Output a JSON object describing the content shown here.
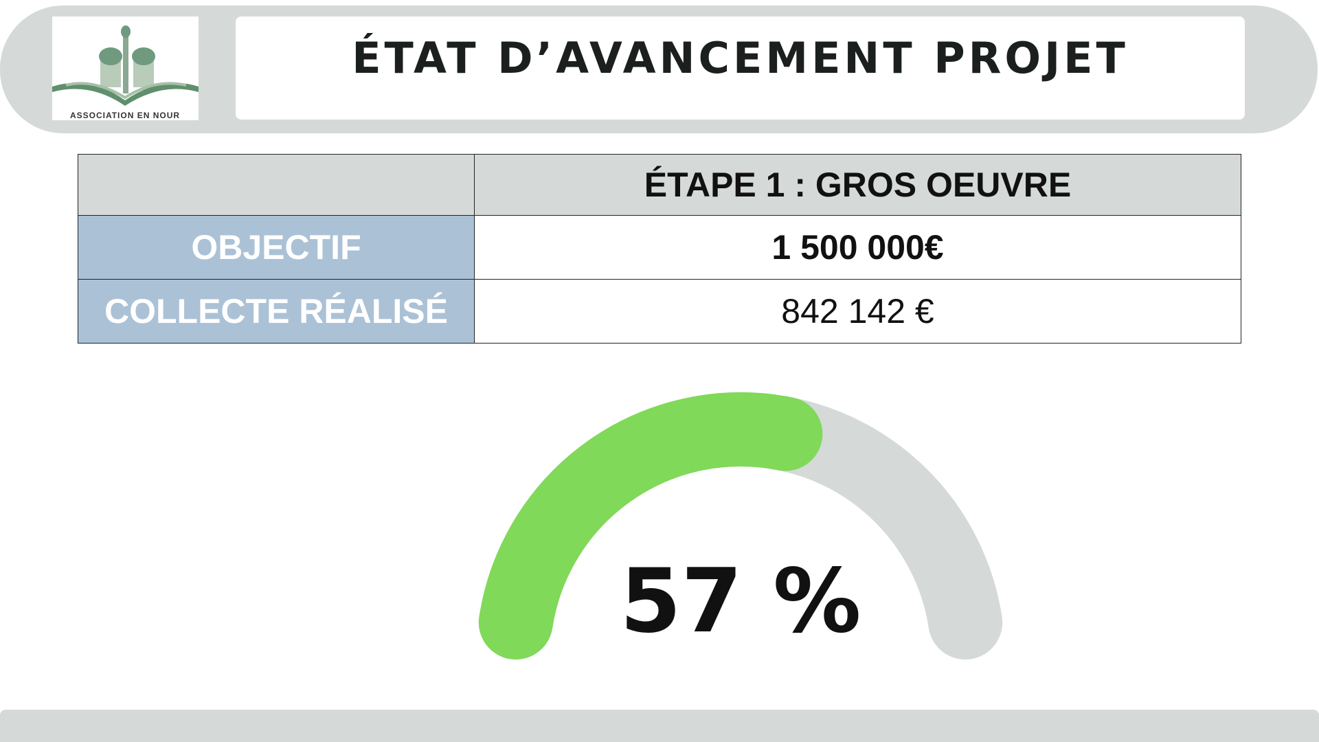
{
  "header": {
    "logo_text": "ASSOCIATION EN NOUR",
    "title": "ÉTAT D’AVANCEMENT PROJET"
  },
  "table": {
    "header": "ÉTAPE 1 : GROS OEUVRE",
    "rows": [
      [
        "OBJECTIF",
        "1 500 000€"
      ],
      [
        "COLLECTE RÉALISÉ",
        "842 142 €"
      ]
    ]
  },
  "chart_data": {
    "type": "gauge",
    "value": 57,
    "value_label": "57 %",
    "ylim": [
      0,
      100
    ],
    "color": "#80d958",
    "track_color": "#d5d9d8"
  }
}
